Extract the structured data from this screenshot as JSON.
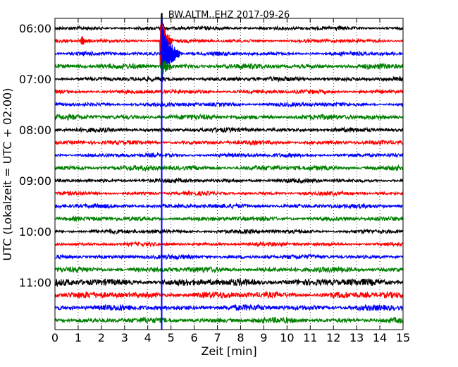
{
  "chart_data": {
    "type": "line",
    "title": "BW.ALTM..EHZ 2017-09-26",
    "xlabel": "Zeit  [min]",
    "ylabel": "UTC (Lokalzeit = UTC + 02:00)",
    "xlim": [
      0,
      15
    ],
    "x_ticks": [
      "0",
      "1",
      "2",
      "3",
      "4",
      "5",
      "6",
      "7",
      "8",
      "9",
      "10",
      "11",
      "12",
      "13",
      "14",
      "15"
    ],
    "y_ticks": [
      "06:00",
      "07:00",
      "08:00",
      "09:00",
      "10:00",
      "11:00"
    ],
    "grid": true,
    "trace_colors": [
      "#000000",
      "#ff0000",
      "#0000ff",
      "#008000"
    ],
    "traces": [
      {
        "start": "06:00",
        "color": "#000000",
        "amplitude": 2.2
      },
      {
        "start": "06:15",
        "color": "#ff0000",
        "amplitude": 2.0
      },
      {
        "start": "06:30",
        "color": "#0000ff",
        "amplitude": 2.2
      },
      {
        "start": "06:45",
        "color": "#008000",
        "amplitude": 3.0
      },
      {
        "start": "07:00",
        "color": "#000000",
        "amplitude": 2.6
      },
      {
        "start": "07:15",
        "color": "#ff0000",
        "amplitude": 2.4
      },
      {
        "start": "07:30",
        "color": "#0000ff",
        "amplitude": 2.4
      },
      {
        "start": "07:45",
        "color": "#008000",
        "amplitude": 3.0
      },
      {
        "start": "08:00",
        "color": "#000000",
        "amplitude": 2.6
      },
      {
        "start": "08:15",
        "color": "#ff0000",
        "amplitude": 2.4
      },
      {
        "start": "08:30",
        "color": "#0000ff",
        "amplitude": 2.4
      },
      {
        "start": "08:45",
        "color": "#008000",
        "amplitude": 3.0
      },
      {
        "start": "09:00",
        "color": "#000000",
        "amplitude": 2.4
      },
      {
        "start": "09:15",
        "color": "#ff0000",
        "amplitude": 2.2
      },
      {
        "start": "09:30",
        "color": "#0000ff",
        "amplitude": 2.6
      },
      {
        "start": "09:45",
        "color": "#008000",
        "amplitude": 2.6
      },
      {
        "start": "10:00",
        "color": "#000000",
        "amplitude": 2.4
      },
      {
        "start": "10:15",
        "color": "#ff0000",
        "amplitude": 2.2
      },
      {
        "start": "10:30",
        "color": "#0000ff",
        "amplitude": 2.6
      },
      {
        "start": "10:45",
        "color": "#008000",
        "amplitude": 3.2
      },
      {
        "start": "11:00",
        "color": "#000000",
        "amplitude": 4.2
      },
      {
        "start": "11:15",
        "color": "#ff0000",
        "amplitude": 3.8
      },
      {
        "start": "11:30",
        "color": "#0000ff",
        "amplitude": 3.4
      },
      {
        "start": "11:45",
        "color": "#008000",
        "amplitude": 3.2
      }
    ],
    "events": [
      {
        "trace": "06:00",
        "minute": 4.6,
        "amplitude": 30,
        "duration": 0.1
      },
      {
        "trace": "06:15",
        "minute": 4.55,
        "amplitude": 40,
        "duration": 0.5
      },
      {
        "trace": "06:15",
        "minute": 1.15,
        "amplitude": 8,
        "duration": 0.4
      },
      {
        "trace": "06:30",
        "minute": 4.6,
        "amplitude": 45,
        "duration": 0.8
      },
      {
        "trace": "06:45",
        "minute": 4.6,
        "amplitude": 14,
        "duration": 0.5
      }
    ]
  }
}
